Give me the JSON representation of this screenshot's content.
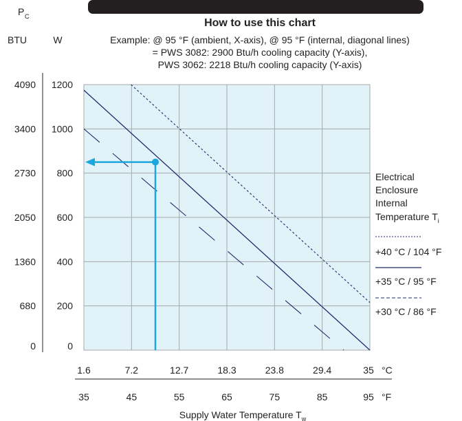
{
  "header_bar": {
    "color": "#231f20"
  },
  "chart_data": {
    "type": "line",
    "title": "How to use this chart",
    "example_lines": [
      "Example: @ 95 °F (ambient, X-axis), @ 95 °F (internal, diagonal lines)",
      "= PWS 3082: 2900 Btu/h cooling capacity (Y-axis),",
      "PWS 3062: 2218 Btu/h cooling capacity (Y-axis)"
    ],
    "ylabel": {
      "symbol": "P",
      "subscript": "C"
    },
    "y_axes": {
      "btu_label": "BTU",
      "w_label": "W",
      "w_ticks": [
        "0",
        "200",
        "400",
        "600",
        "800",
        "1000",
        "1200"
      ],
      "btu_ticks": [
        "0",
        "680",
        "1360",
        "2050",
        "2730",
        "3400",
        "4090"
      ]
    },
    "ylim": [
      0,
      1200
    ],
    "x_axes": {
      "celsius_ticks": [
        "1.6",
        "7.2",
        "12.7",
        "18.3",
        "23.8",
        "29.4",
        "35"
      ],
      "celsius_unit": "°C",
      "fahrenheit_ticks": [
        "35",
        "45",
        "55",
        "65",
        "75",
        "85",
        "95"
      ],
      "fahrenheit_unit": "°F"
    },
    "xlim_fahrenheit": [
      35,
      95
    ],
    "xlabel": {
      "text": "Supply Water Temperature T",
      "subscript": "w"
    },
    "legend": {
      "title_lines": [
        "Electrical",
        "Enclosure",
        "Internal",
        "Temperature T"
      ],
      "title_subscript": "i",
      "position": "right"
    },
    "series": [
      {
        "name": "+40 °C / 104 °F",
        "style": "dotted",
        "x": [
          44.9,
          95
        ],
        "y": [
          1200,
          215
        ]
      },
      {
        "name": "+35 °C / 95 °F",
        "style": "solid",
        "x": [
          35,
          95
        ],
        "y": [
          1175,
          0
        ]
      },
      {
        "name": "+30 °C / 86 °F",
        "style": "dashed",
        "x": [
          35,
          89.5
        ],
        "y": [
          1000,
          0
        ]
      }
    ],
    "example_marker": {
      "x": 50,
      "y": 850
    },
    "grid": true,
    "colors": {
      "plot_background": "#e2f2f9",
      "grid": "#a4a9ac",
      "series": "#1d2a6b",
      "accent": "#1aa7dd"
    }
  }
}
